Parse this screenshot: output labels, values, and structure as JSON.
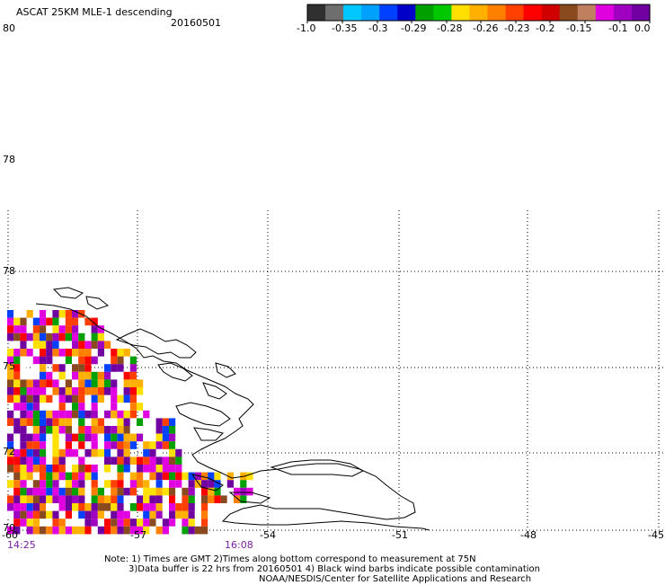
{
  "header": {
    "title": "ASCAT 25KM MLE-1 descending",
    "date": "20160501"
  },
  "legend": {
    "colors": [
      "#303030",
      "#6e6e6e",
      "#00c8ff",
      "#00a0ff",
      "#0040ff",
      "#0000c8",
      "#00a000",
      "#00c800",
      "#ffe000",
      "#ffb000",
      "#ff8000",
      "#ff4000",
      "#ff0000",
      "#d00000",
      "#8a4a20",
      "#c08060",
      "#e000e0",
      "#a000c0",
      "#7000a0"
    ],
    "labels": [
      "-1.0",
      "-0.35",
      "-0.3",
      "-0.29",
      "-0.28",
      "-0.26",
      "-0.23",
      "-0.2",
      "-0.15",
      "-0.1",
      "0.0"
    ]
  },
  "map": {
    "lat_labels": [
      "80",
      "78",
      "78",
      "75",
      "72",
      "70"
    ],
    "lon_labels": [
      "-60",
      "-57",
      "-54",
      "-51",
      "-48",
      "-45"
    ],
    "time_labels": [
      "14:25",
      "16:08"
    ]
  },
  "notes": [
    "Note: 1) Times are GMT 2)Times along bottom correspond to measurement at 75N",
    "3)Data buffer is 22 hrs from 20160501 4) Black wind barbs indicate possible contamination",
    "NOAA/NESDIS/Center for Satellite Applications and Research"
  ]
}
